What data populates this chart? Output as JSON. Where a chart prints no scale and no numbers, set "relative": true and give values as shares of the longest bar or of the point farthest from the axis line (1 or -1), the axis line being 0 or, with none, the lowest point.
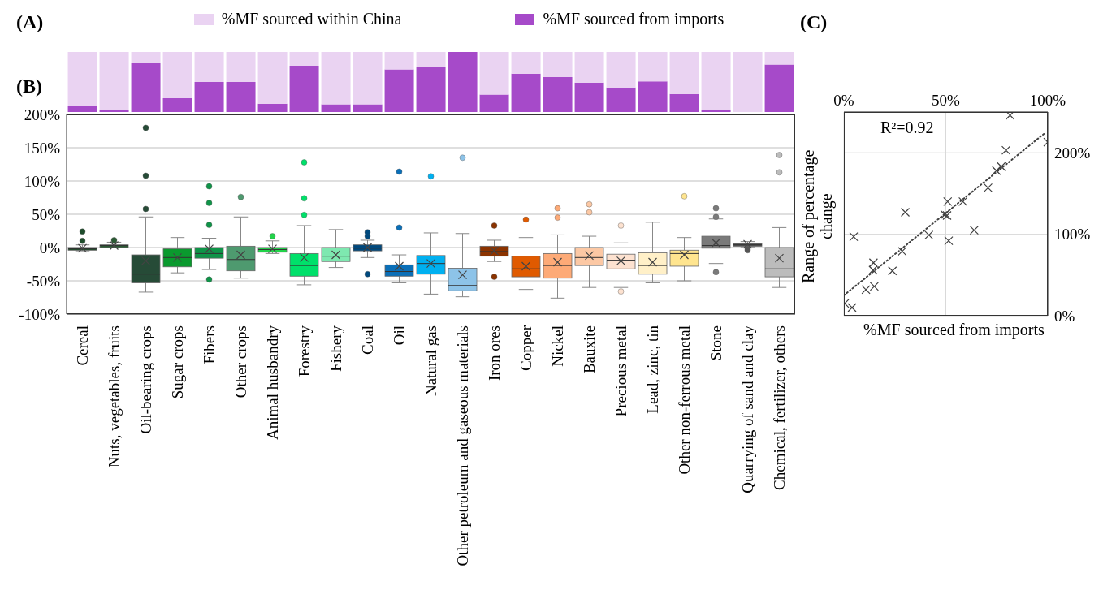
{
  "chart_data": [
    {
      "type": "bar",
      "title": "(A)",
      "stacked": true,
      "relative": true,
      "legend": "top",
      "categories": [
        null,
        null,
        null,
        null,
        null,
        null,
        null,
        null,
        null,
        null,
        null,
        null,
        null,
        null,
        null,
        null,
        null,
        null,
        null,
        null,
        null,
        null,
        null
      ],
      "series": [
        {
          "name": "%MF sourced from imports",
          "color": "#a64ac9",
          "values": [
            0.1,
            0.03,
            0.81,
            0.23,
            0.5,
            0.5,
            0.14,
            0.77,
            0.13,
            0.13,
            0.71,
            0.75,
            1.0,
            0.29,
            0.64,
            0.58,
            0.49,
            0.41,
            0.51,
            0.3,
            0.04,
            0,
            0.79
          ]
        },
        {
          "name": "%MF sourced within China",
          "color": "#ead3f2",
          "values": [
            0.9,
            0.97,
            0.19,
            0.77,
            0.5,
            0.5,
            0.86,
            0.23,
            0.87,
            0.87,
            0.29,
            0.25,
            0,
            0.71,
            0.36,
            0.42,
            0.51,
            0.59,
            0.49,
            0.7,
            0.96,
            1,
            0.21
          ]
        }
      ]
    },
    {
      "type": "box",
      "title": "(B)",
      "grid": "y",
      "categories": [
        "Cereal",
        "Nuts, vegetables, fruits",
        "Oil-bearing crops",
        "Sugar crops",
        "Fibers",
        "Other crops",
        "Animal husbandry",
        "Forestry",
        "Fishery",
        "Coal",
        "Oil",
        "Natural gas",
        "Other petroleum and gaseous materials",
        "Iron ores",
        "Copper",
        "Nickel",
        "Bauxite",
        "Precious metal",
        "Lead, zinc, tin",
        "Other non-ferrous metal",
        "Stone",
        "Quarrying of sand and clay",
        "Chemical, fertilizer, others"
      ],
      "colors": [
        "#1e4d2b",
        "#2b5a34",
        "#264b37",
        "#0a9a2e",
        "#0f9448",
        "#4e9a6f",
        "#22d34a",
        "#00e06a",
        "#7ee8b0",
        "#00497e",
        "#0a6fb8",
        "#00b0f0",
        "#8dc3e8",
        "#8b3300",
        "#e05a00",
        "#fdaa77",
        "#fcc8a4",
        "#fde2d0",
        "#fff0c8",
        "#ffe58f",
        "#7a7a7a",
        "#555555",
        "#bcbcbc"
      ],
      "ylim": [
        -100,
        200
      ],
      "yticks": [
        {
          "value": -100,
          "label": "-100%"
        },
        {
          "value": -50,
          "label": "-50%"
        },
        {
          "value": 0,
          "label": "0%"
        },
        {
          "value": 50,
          "label": "50%"
        },
        {
          "value": 100,
          "label": "100%"
        },
        {
          "value": 150,
          "label": "150%"
        },
        {
          "value": 200,
          "label": "200%"
        }
      ],
      "boxes": [
        {
          "low": -5,
          "q1": -4,
          "median": -2,
          "q3": 0,
          "high": 4,
          "mean": -1,
          "outliers": [
            10,
            24
          ]
        },
        {
          "low": 0,
          "q1": 0,
          "median": 3,
          "q3": 4,
          "high": 8,
          "mean": 3,
          "outliers": [
            11
          ]
        },
        {
          "low": -67,
          "q1": -53,
          "median": -40,
          "q3": -11,
          "high": 46,
          "mean": -20,
          "outliers": [
            58,
            108,
            180
          ]
        },
        {
          "low": -38,
          "q1": -29,
          "median": -15,
          "q3": -2,
          "high": 15,
          "mean": -15
        },
        {
          "low": -33,
          "q1": -16,
          "median": -9,
          "q3": 0,
          "high": 14,
          "mean": -2,
          "outliers": [
            34,
            67,
            92,
            -48
          ]
        },
        {
          "low": -46,
          "q1": -35,
          "median": -18,
          "q3": 2,
          "high": 46,
          "mean": -11,
          "outliers": [
            76
          ]
        },
        {
          "low": -9,
          "q1": -7,
          "median": -3,
          "q3": 0,
          "high": 10,
          "mean": -2,
          "outliers": [
            17
          ]
        },
        {
          "low": -56,
          "q1": -43,
          "median": -27,
          "q3": -9,
          "high": 33,
          "mean": -15,
          "outliers": [
            49,
            74,
            128
          ]
        },
        {
          "low": -30,
          "q1": -21,
          "median": -13,
          "q3": 0,
          "high": 27,
          "mean": -11
        },
        {
          "low": -15,
          "q1": -5,
          "median": -1,
          "q3": 4,
          "high": 11,
          "mean": 0,
          "outliers": [
            17,
            23,
            -40
          ]
        },
        {
          "low": -53,
          "q1": -43,
          "median": -36,
          "q3": -26,
          "high": -11,
          "mean": -28,
          "outliers": [
            30,
            114
          ]
        },
        {
          "low": -70,
          "q1": -40,
          "median": -24,
          "q3": -12,
          "high": 22,
          "mean": -24,
          "outliers": [
            107
          ]
        },
        {
          "low": -74,
          "q1": -65,
          "median": -57,
          "q3": -31,
          "high": 21,
          "mean": -41,
          "outliers": [
            135
          ]
        },
        {
          "low": -21,
          "q1": -13,
          "median": -6,
          "q3": 2,
          "high": 11,
          "mean": -5,
          "outliers": [
            33,
            -44
          ]
        },
        {
          "low": -63,
          "q1": -44,
          "median": -32,
          "q3": -13,
          "high": 15,
          "mean": -28,
          "outliers": [
            42
          ]
        },
        {
          "low": -76,
          "q1": -46,
          "median": -27,
          "q3": -9,
          "high": 19,
          "mean": -22,
          "outliers": [
            45,
            59
          ]
        },
        {
          "low": -60,
          "q1": -27,
          "median": -15,
          "q3": 0,
          "high": 17,
          "mean": -12,
          "outliers": [
            53,
            65
          ]
        },
        {
          "low": -60,
          "q1": -32,
          "median": -19,
          "q3": -10,
          "high": 7,
          "mean": -20,
          "outliers": [
            33,
            -66
          ]
        },
        {
          "low": -53,
          "q1": -40,
          "median": -27,
          "q3": -8,
          "high": 38,
          "mean": -22
        },
        {
          "low": -50,
          "q1": -28,
          "median": -9,
          "q3": -4,
          "high": 15,
          "mean": -11,
          "outliers": [
            77
          ]
        },
        {
          "low": -24,
          "q1": -1,
          "median": 3,
          "q3": 17,
          "high": 43,
          "mean": 7,
          "outliers": [
            46,
            59,
            -37
          ]
        },
        {
          "low": 1,
          "q1": 2,
          "median": 4,
          "q3": 6,
          "high": 9,
          "mean": 5,
          "outliers": [
            -2,
            -4
          ]
        },
        {
          "low": -60,
          "q1": -44,
          "median": -32,
          "q3": 0,
          "high": 30,
          "mean": -16,
          "outliers": [
            113,
            139
          ]
        }
      ]
    },
    {
      "type": "scatter",
      "title": "(C)",
      "xlabel": "%MF sourced from imports",
      "ylabel": "Range of percentage change",
      "grid": true,
      "marker": "cross",
      "xlim": [
        0,
        100
      ],
      "xticks": [
        {
          "value": 0,
          "label": "0%"
        },
        {
          "value": 50,
          "label": "50%"
        },
        {
          "value": 100,
          "label": "100%"
        }
      ],
      "ylim": [
        0,
        250
      ],
      "yticks": [
        {
          "value": 0,
          "label": "0%"
        },
        {
          "value": 100,
          "label": "100%"
        },
        {
          "value": 200,
          "label": "200%"
        }
      ],
      "annotations": [
        "R²=0.92"
      ],
      "series": [
        {
          "type": "scatter",
          "color": "#404040",
          "x": [
            0.4,
            4,
            4.8,
            10.8,
            14.9,
            14.5,
            14.3,
            23.8,
            28.6,
            30.1,
            41.7,
            49.5,
            50.6,
            50.9,
            51.4,
            58.4,
            63.9,
            70.7,
            74.8,
            77.2,
            79.5,
            81.5,
            100
          ],
          "values": [
            15,
            10,
            97,
            32,
            36,
            65,
            56,
            55,
            79,
            127,
            99,
            124,
            123,
            140,
            92,
            140,
            105,
            157,
            178,
            183,
            203,
            246,
            213
          ]
        },
        {
          "type": "line",
          "color": "#404040",
          "x": [
            0,
            99
          ],
          "values": [
            25,
            225
          ],
          "line_style": "dotted",
          "marker": "none"
        }
      ]
    }
  ]
}
